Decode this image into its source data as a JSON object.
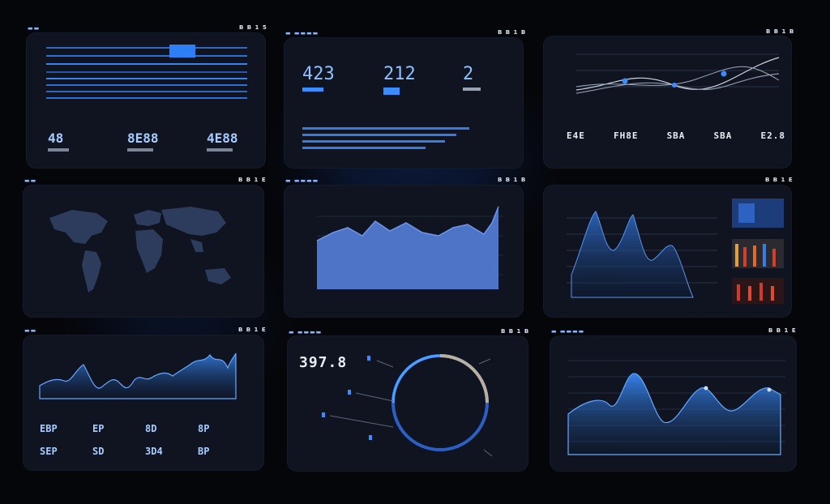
{
  "headers": {
    "p1": {
      "ctrl": "B B 1 5"
    },
    "p2": {
      "ctrl": "B B 1 B"
    },
    "p3": {
      "ctrl": "B B 1 B"
    },
    "p4": {
      "ctrl": "B B 1 E"
    },
    "p5": {
      "ctrl": "B B 1 B"
    },
    "p6": {
      "ctrl": "B B 1 E"
    },
    "p7": {
      "ctrl": "B B 1 E"
    },
    "p8": {
      "ctrl": "B B 1 B"
    },
    "p9": {
      "ctrl": "B B 1 E"
    }
  },
  "p1": {
    "stats": [
      "48",
      "8E88",
      "4E88"
    ]
  },
  "p2": {
    "kpis": [
      "423",
      "212",
      "2"
    ]
  },
  "p3": {
    "stats": [
      "E4E",
      "FH8E",
      "SBA",
      "SBA",
      "E2.8"
    ]
  },
  "p7": {
    "stats": [
      "EBP",
      "EP",
      "8D",
      "8P",
      "SEP",
      "SD",
      "3D4",
      "BP"
    ]
  },
  "p8": {
    "kpi": "397.8"
  },
  "colors": {
    "accent": "#3a8dff",
    "panel": "#0f1420",
    "bg": "#050609"
  }
}
